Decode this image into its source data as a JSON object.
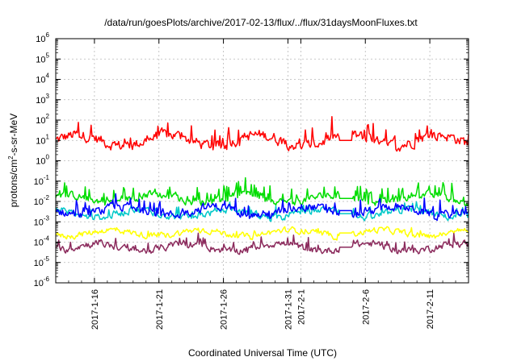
{
  "chart_data": {
    "type": "line",
    "title": "/data/run/goesPlots/archive/2017-02-13/flux/../flux/31daysMoonFluxes.txt",
    "xlabel": "Coordinated Universal Time (UTC)",
    "ylabel_parts": {
      "base": "protons/cm",
      "sup": "2",
      "rest": "-s-sr-MeV"
    },
    "ylog": true,
    "ylim": [
      -6,
      6
    ],
    "xlim": [
      "2017-01-13",
      "2017-02-14"
    ],
    "grid": true,
    "y_ticks": [
      {
        "exp": "-6"
      },
      {
        "exp": "-5"
      },
      {
        "exp": "-4"
      },
      {
        "exp": "-3"
      },
      {
        "exp": "-2"
      },
      {
        "exp": "-1"
      },
      {
        "exp": "0"
      },
      {
        "exp": "1"
      },
      {
        "exp": "2"
      },
      {
        "exp": "3"
      },
      {
        "exp": "4"
      },
      {
        "exp": "5"
      },
      {
        "exp": "6"
      }
    ],
    "y_tick_base": "10",
    "x_ticks": [
      {
        "date": "2017-01-16",
        "label": "2017-1-16"
      },
      {
        "date": "2017-01-21",
        "label": "2017-1-21"
      },
      {
        "date": "2017-01-26",
        "label": "2017-1-26"
      },
      {
        "date": "2017-01-31",
        "label": "2017-1-31"
      },
      {
        "date": "2017-02-01",
        "label": "2017-2-1"
      },
      {
        "date": "2017-02-06",
        "label": "2017-2-6"
      },
      {
        "date": "2017-02-11",
        "label": "2017-2-11"
      }
    ],
    "gap": [
      "2017-02-04",
      "2017-02-05"
    ],
    "series": [
      {
        "color": "#ff0000",
        "baseline": 1.0,
        "amp": 0.45,
        "spike_freq": 0.12,
        "spike_amp": 0.8
      },
      {
        "color": "#00dd00",
        "baseline": -1.85,
        "amp": 0.3,
        "spike_freq": 0.25,
        "spike_amp": 0.7
      },
      {
        "color": "#00c8c8",
        "baseline": -2.6,
        "amp": 0.3,
        "spike_freq": 0.1,
        "spike_amp": 0.4
      },
      {
        "color": "#0000ff",
        "baseline": -2.45,
        "amp": 0.35,
        "spike_freq": 0.15,
        "spike_amp": 0.6
      },
      {
        "color": "#ffff00",
        "baseline": -3.55,
        "amp": 0.25,
        "spike_freq": 0.05,
        "spike_amp": 0.3
      },
      {
        "color": "#8b2a5c",
        "baseline": -4.25,
        "amp": 0.3,
        "spike_freq": 0.08,
        "spike_amp": 0.5
      }
    ]
  }
}
